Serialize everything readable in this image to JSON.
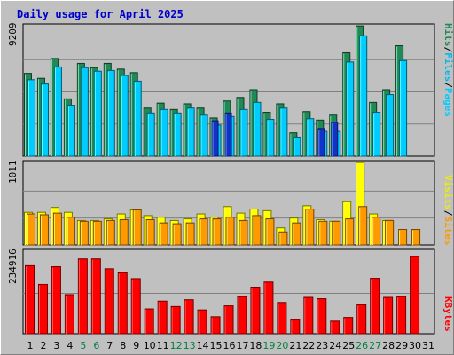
{
  "title": "Daily usage for April 2025",
  "colors": {
    "background": "#c0c0c0",
    "hits": "#228855",
    "files": "#00ccff",
    "pages": "#1133cc",
    "visits": "#ffff00",
    "sites": "#ff9900",
    "kbytes": "#ff0000",
    "weekend_label": "#008040",
    "weekday_label": "#000000"
  },
  "legend": {
    "top": [
      {
        "text": "Hits",
        "color": "#228855"
      },
      {
        "text": "/",
        "color": "#000000"
      },
      {
        "text": "Files",
        "color": "#00bbee"
      },
      {
        "text": "/",
        "color": "#000000"
      },
      {
        "text": "Pages",
        "color": "#00ccff"
      }
    ],
    "middle": [
      {
        "text": "Visits",
        "color": "#eeee00"
      },
      {
        "text": "/",
        "color": "#000000"
      },
      {
        "text": "Sites",
        "color": "#ff9900"
      }
    ],
    "bottom": [
      {
        "text": "KBytes",
        "color": "#ff0000"
      }
    ]
  },
  "chart_data": {
    "type": "bar",
    "title": "Daily usage for April 2025",
    "categories": [
      "1",
      "2",
      "3",
      "4",
      "5",
      "6",
      "7",
      "8",
      "9",
      "10",
      "11",
      "12",
      "13",
      "14",
      "15",
      "16",
      "17",
      "18",
      "19",
      "20",
      "21",
      "22",
      "23",
      "24",
      "25",
      "26",
      "27",
      "28",
      "29",
      "30",
      "31"
    ],
    "weekend_days": [
      "5",
      "6",
      "12",
      "13",
      "19",
      "20",
      "26",
      "27"
    ],
    "panels": [
      {
        "name": "hits-files-pages",
        "ymax_label": "9209",
        "ymax": 9209,
        "series": [
          {
            "name": "Hits",
            "values": [
              5850,
              5500,
              6900,
              4050,
              6550,
              6250,
              6550,
              6150,
              5900,
              3400,
              3750,
              3300,
              3700,
              3400,
              2700,
              3900,
              4150,
              4700,
              3100,
              3700,
              1650,
              3150,
              2550,
              2900,
              7300,
              9200,
              3800,
              4700,
              7800,
              0,
              0
            ]
          },
          {
            "name": "Files",
            "values": [
              5400,
              5100,
              6300,
              3600,
              6250,
              6000,
              6050,
              5700,
              5300,
              3050,
              3300,
              3050,
              3400,
              2900,
              2200,
              2800,
              3300,
              3800,
              2600,
              3400,
              1350,
              2650,
              1750,
              1750,
              6650,
              8500,
              3100,
              4350,
              6750,
              0,
              0
            ]
          },
          {
            "name": "Pages",
            "values": [
              0,
              0,
              0,
              0,
              0,
              0,
              0,
              0,
              0,
              0,
              0,
              0,
              0,
              0,
              2500,
              3050,
              0,
              0,
              0,
              0,
              0,
              0,
              1950,
              2400,
              0,
              0,
              0,
              0,
              0,
              0,
              0
            ]
          }
        ]
      },
      {
        "name": "visits-sites",
        "ymax_label": "1011",
        "ymax": 1011,
        "series": [
          {
            "name": "Visits",
            "values": [
              400,
              400,
              460,
              400,
              300,
              300,
              320,
              380,
              430,
              360,
              340,
              300,
              320,
              380,
              340,
              470,
              390,
              440,
              420,
              210,
              330,
              480,
              310,
              290,
              530,
              1010,
              380,
              300,
              0,
              0,
              0
            ]
          },
          {
            "name": "Sites",
            "values": [
              380,
              370,
              390,
              340,
              290,
              290,
              300,
              310,
              430,
              310,
              270,
              260,
              270,
              320,
              320,
              340,
              300,
              360,
              320,
              160,
              270,
              440,
              290,
              290,
              320,
              470,
              340,
              300,
              190,
              190,
              0
            ]
          }
        ]
      },
      {
        "name": "kbytes",
        "ymax_label": "234916",
        "ymax": 234916,
        "series": [
          {
            "name": "KBytes",
            "values": [
              200000,
              145000,
              197000,
              115000,
              220000,
              220000,
              191000,
              179000,
              162000,
              73000,
              96000,
              80000,
              100000,
              70000,
              50000,
              82000,
              109000,
              137000,
              152000,
              92000,
              41000,
              107000,
              103000,
              37000,
              48000,
              85000,
              163000,
              107000,
              109000,
              227000,
              0
            ]
          }
        ]
      }
    ]
  }
}
